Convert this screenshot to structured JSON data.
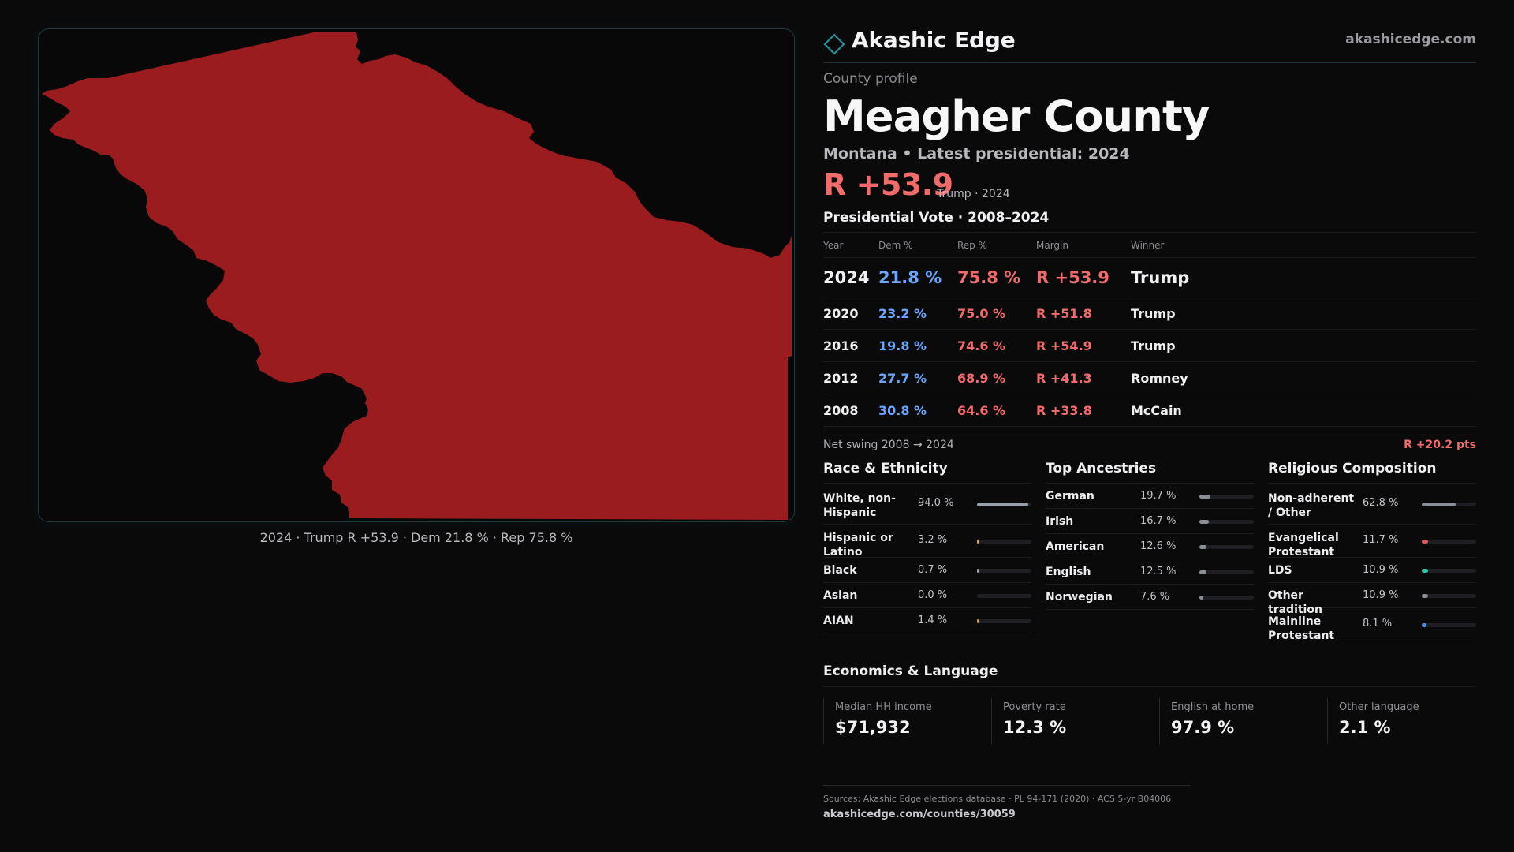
{
  "brand": {
    "name": "Akashic Edge",
    "url": "akashicedge.com",
    "icon": "diamond-outline-icon",
    "accent": "#2a8f97"
  },
  "map": {
    "fill_color": "#9b1c1f",
    "caption": "2024 · Trump R +53.9 · Dem 21.8 % · Rep 75.8 %"
  },
  "profile": {
    "eyebrow": "County profile",
    "county": "Meagher County",
    "subtitle": "Montana • Latest presidential: 2024",
    "headline_margin": "R +53.9",
    "headline_sub": "Trump · 2024"
  },
  "votes": {
    "title": "Presidential Vote · 2008–2024",
    "columns": [
      "Year",
      "Dem %",
      "Rep %",
      "Margin",
      "Winner"
    ],
    "rows": [
      {
        "year": "2024",
        "dem": "21.8 %",
        "rep": "75.8 %",
        "margin": "R +53.9",
        "winner": "Trump"
      },
      {
        "year": "2020",
        "dem": "23.2 %",
        "rep": "75.0 %",
        "margin": "R +51.8",
        "winner": "Trump"
      },
      {
        "year": "2016",
        "dem": "19.8 %",
        "rep": "74.6 %",
        "margin": "R +54.9",
        "winner": "Trump"
      },
      {
        "year": "2012",
        "dem": "27.7 %",
        "rep": "68.9 %",
        "margin": "R +41.3",
        "winner": "Romney"
      },
      {
        "year": "2008",
        "dem": "30.8 %",
        "rep": "64.6 %",
        "margin": "R +33.8",
        "winner": "McCain"
      }
    ],
    "colors": {
      "dem": "#6aa6ff",
      "rep": "#f26b6b"
    }
  },
  "swing": {
    "label": "Net swing 2008 → 2024",
    "value": "R +20.2 pts"
  },
  "race": {
    "title": "Race & Ethnicity",
    "items": [
      {
        "label": "White, non-Hispanic",
        "pct": "94.0 %",
        "value": 94.0,
        "color": "#9aa0aa"
      },
      {
        "label": "Hispanic or Latino",
        "pct": "3.2 %",
        "value": 3.2,
        "color": "#e0a030"
      },
      {
        "label": "Black",
        "pct": "0.7 %",
        "value": 0.7,
        "color": "#9aa0aa"
      },
      {
        "label": "Asian",
        "pct": "0.0 %",
        "value": 0.0,
        "color": "#9aa0aa"
      },
      {
        "label": "AIAN",
        "pct": "1.4 %",
        "value": 1.4,
        "color": "#e0a030"
      }
    ]
  },
  "ancestry": {
    "title": "Top Ancestries",
    "items": [
      {
        "label": "German",
        "pct": "19.7 %",
        "value": 19.7,
        "color": "#8a8e96"
      },
      {
        "label": "Irish",
        "pct": "16.7 %",
        "value": 16.7,
        "color": "#8a8e96"
      },
      {
        "label": "American",
        "pct": "12.6 %",
        "value": 12.6,
        "color": "#8a8e96"
      },
      {
        "label": "English",
        "pct": "12.5 %",
        "value": 12.5,
        "color": "#8a8e96"
      },
      {
        "label": "Norwegian",
        "pct": "7.6 %",
        "value": 7.6,
        "color": "#8a8e96"
      }
    ]
  },
  "religion": {
    "title": "Religious Composition",
    "items": [
      {
        "label": "Non-adherent / Other",
        "pct": "62.8 %",
        "value": 62.8,
        "color": "#8a8e96"
      },
      {
        "label": "Evangelical Protestant",
        "pct": "11.7 %",
        "value": 11.7,
        "color": "#e0545c"
      },
      {
        "label": "LDS",
        "pct": "10.9 %",
        "value": 10.9,
        "color": "#2ec4a5"
      },
      {
        "label": "Other tradition",
        "pct": "10.9 %",
        "value": 10.9,
        "color": "#8a8e96"
      },
      {
        "label": "Mainline Protestant",
        "pct": "8.1 %",
        "value": 8.1,
        "color": "#4a8ee8"
      }
    ]
  },
  "economics": {
    "title": "Economics & Language",
    "cells": [
      {
        "label": "Median HH income",
        "value": "$71,932"
      },
      {
        "label": "Poverty rate",
        "value": "12.3 %"
      },
      {
        "label": "English at home",
        "value": "97.9 %"
      },
      {
        "label": "Other language",
        "value": "2.1 %"
      }
    ]
  },
  "sources": {
    "line": "Sources: Akashic Edge elections database · PL 94-171 (2020) · ACS 5-yr B04006",
    "url": "akashicedge.com/counties/30059"
  }
}
